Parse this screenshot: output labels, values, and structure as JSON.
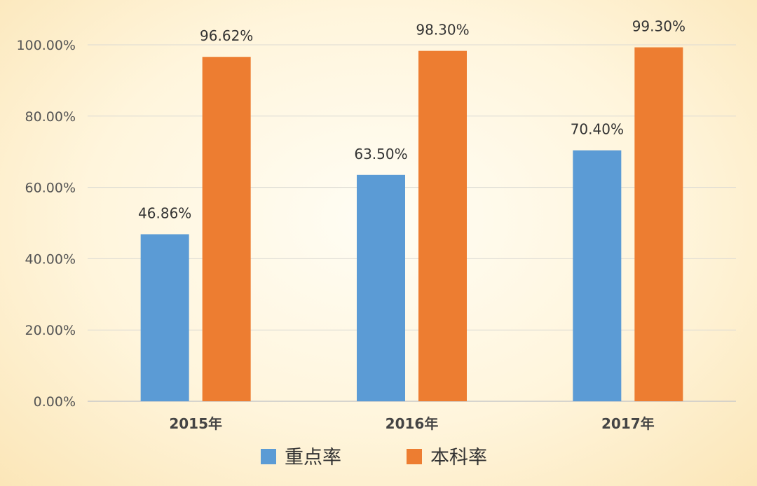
{
  "chart_data": {
    "type": "bar",
    "title": "",
    "xlabel": "",
    "ylabel": "",
    "categories": [
      "2015年",
      "2016年",
      "2017年"
    ],
    "series": [
      {
        "name": "重点率",
        "color": "#5b9bd5",
        "values": [
          46.86,
          63.5,
          70.4
        ],
        "labels": [
          "46.86%",
          "63.50%",
          "70.40%"
        ]
      },
      {
        "name": "本科率",
        "color": "#ed7d31",
        "values": [
          96.62,
          98.3,
          99.3
        ],
        "labels": [
          "96.62%",
          "98.30%",
          "99.30%"
        ]
      }
    ],
    "ylim": [
      0,
      100
    ],
    "yticks": [
      0,
      20,
      40,
      60,
      80,
      100
    ],
    "ytick_labels": [
      "0.00%",
      "20.00%",
      "40.00%",
      "60.00%",
      "80.00%",
      "100.00%"
    ],
    "grid": true,
    "legend": "bottom"
  }
}
